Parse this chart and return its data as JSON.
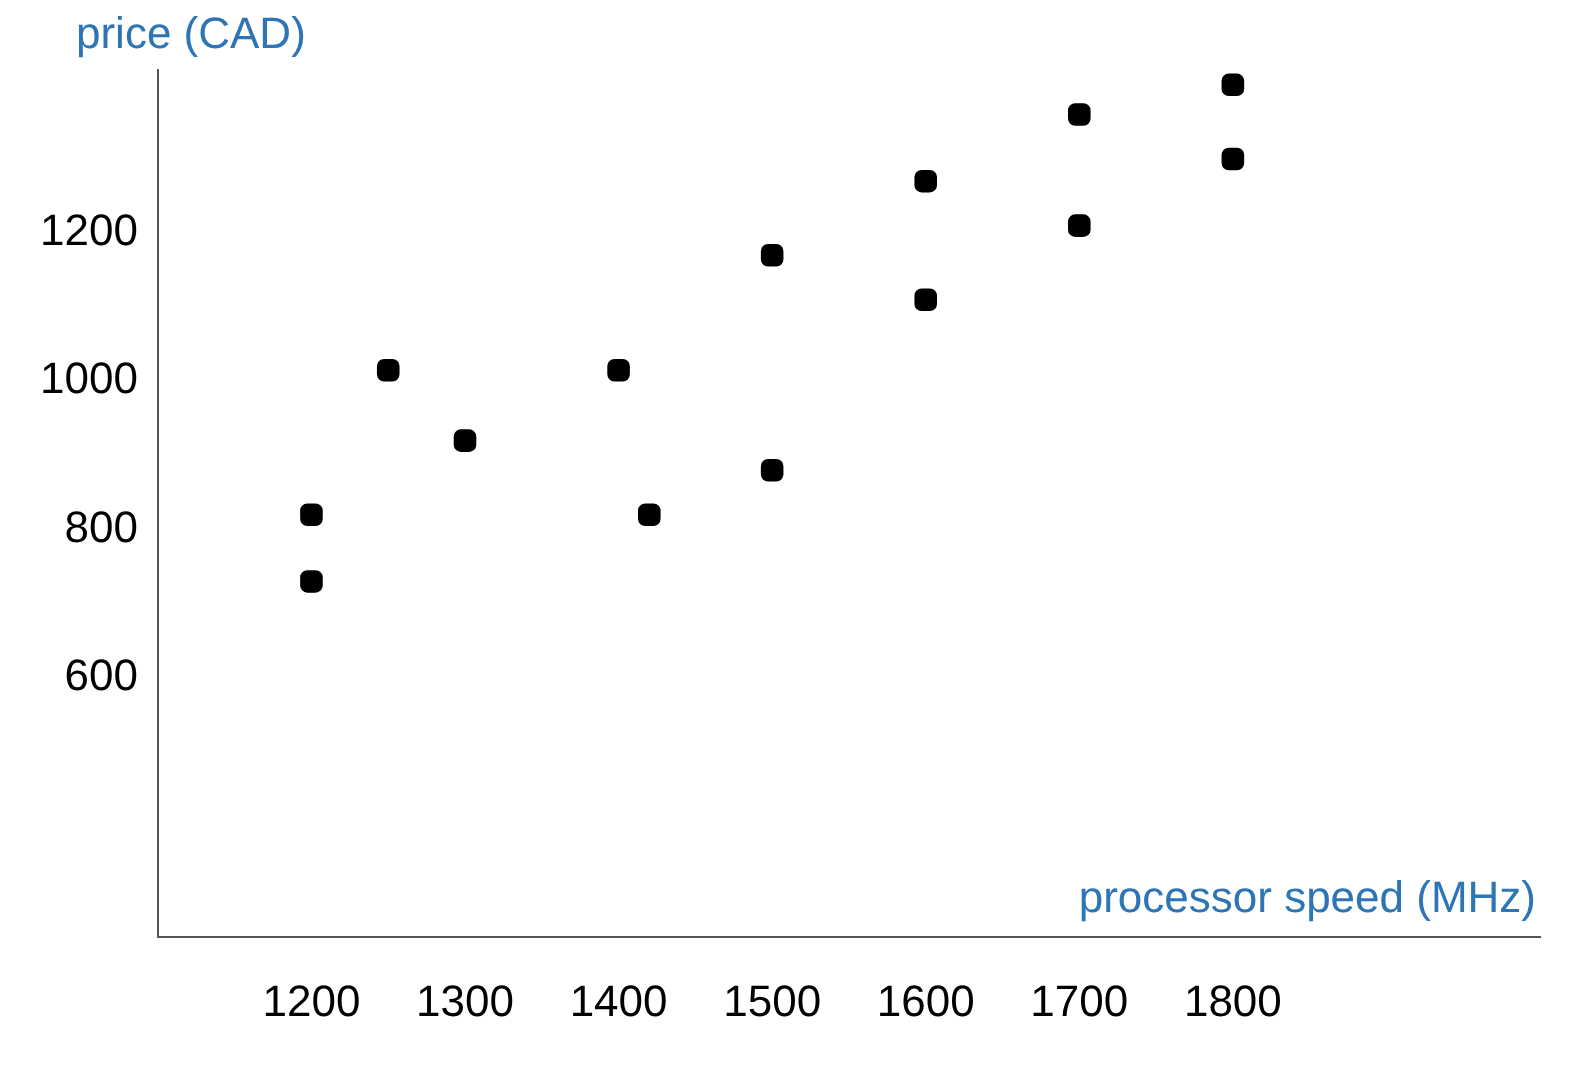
{
  "chart_data": {
    "type": "scatter",
    "xlabel": "processor speed  (MHz)",
    "ylabel": "price (CAD)",
    "x": [
      1200,
      1200,
      1250,
      1300,
      1400,
      1420,
      1500,
      1500,
      1600,
      1600,
      1700,
      1700,
      1800,
      1800
    ],
    "values": [
      820,
      730,
      1015,
      920,
      1015,
      820,
      1170,
      880,
      1270,
      1110,
      1360,
      1210,
      1400,
      1300
    ],
    "color": "#000000",
    "marker": "square",
    "xlim": [
      1100,
      2000
    ],
    "xticks": [
      1200,
      1300,
      1400,
      1500,
      1600,
      1700,
      1800
    ],
    "ylim": [
      250,
      1420
    ],
    "yticks": [
      600,
      800,
      1000,
      1200
    ],
    "grid": false,
    "legend": false
  }
}
